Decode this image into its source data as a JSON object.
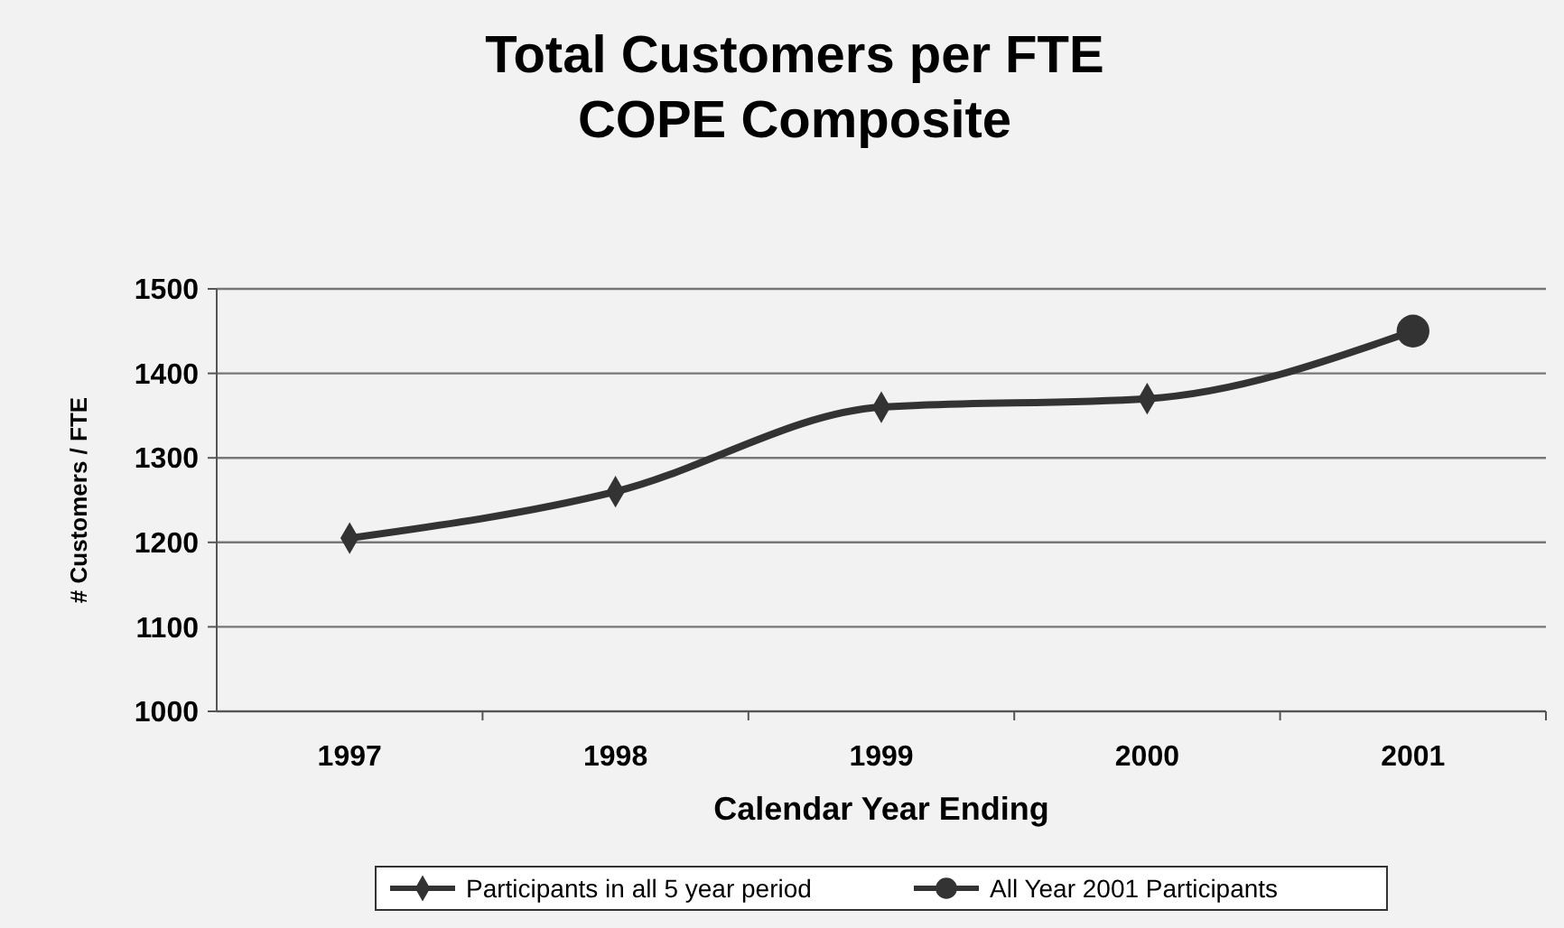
{
  "chart_data": {
    "type": "line",
    "title": "Total Customers per FTE\nCOPE Composite",
    "xlabel": "Calendar Year Ending",
    "ylabel": "# Customers / FTE",
    "categories": [
      "1997",
      "1998",
      "1999",
      "2000",
      "2001"
    ],
    "series": [
      {
        "name": "Participants in all 5 year period",
        "color": "#333333",
        "values": [
          1205,
          1260,
          1360,
          1370,
          1450
        ],
        "marker": "diamond"
      },
      {
        "name": "All Year 2001 Participants",
        "color": "#333333",
        "values": [
          null,
          null,
          null,
          null,
          1450
        ],
        "marker": "circle"
      }
    ],
    "ylim": [
      1000,
      1500
    ],
    "yticks": [
      1000,
      1100,
      1200,
      1300,
      1400,
      1500
    ],
    "grid": "y",
    "legend": "bottom",
    "line_style": "solid"
  }
}
